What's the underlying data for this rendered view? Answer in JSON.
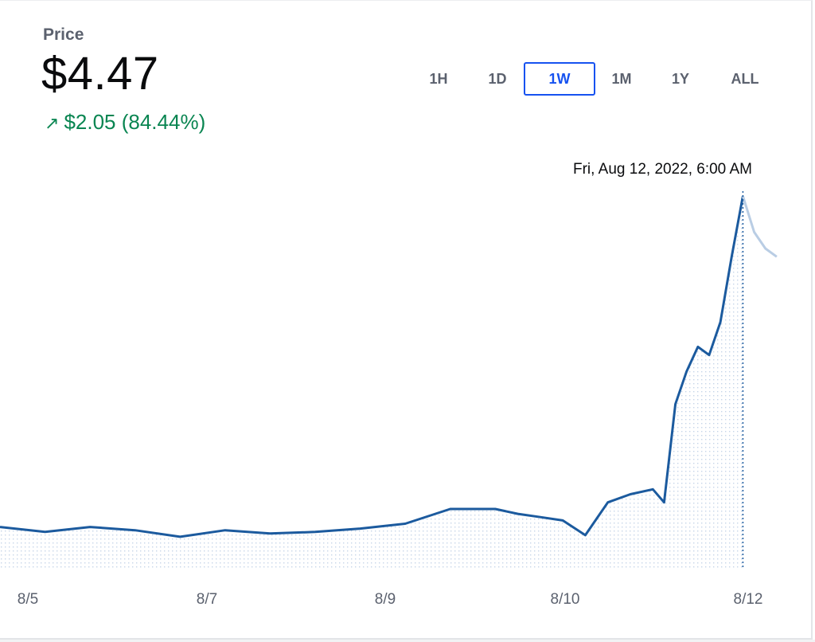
{
  "header": {
    "price_label": "Price",
    "price_value": "$4.47",
    "change_icon": "arrow-up-right-icon",
    "change_text": "$2.05 (84.44%)"
  },
  "range_tabs": {
    "items": [
      {
        "label": "1H"
      },
      {
        "label": "1D"
      },
      {
        "label": "1W"
      },
      {
        "label": "1M"
      },
      {
        "label": "1Y"
      },
      {
        "label": "ALL"
      }
    ],
    "selected": "1W"
  },
  "tooltip": {
    "date": "Fri, Aug 12, 2022, 6:00 AM"
  },
  "colors": {
    "line": "#1b5a9e",
    "line_faded": "#b9cde4",
    "fill_dots": "#c6d5e8",
    "positive": "#098551",
    "accent": "#1652f0"
  },
  "chart_data": {
    "type": "area",
    "title": "",
    "xlabel": "",
    "ylabel": "",
    "x_tick_labels": [
      "8/5",
      "8/7",
      "8/9",
      "8/10",
      "8/12"
    ],
    "x_range": [
      "2022-08-04",
      "2022-08-12"
    ],
    "y_range_usd": [
      2.2,
      4.5
    ],
    "hover_point": {
      "date": "2022-08-12 06:00",
      "value": 4.47
    },
    "series": [
      {
        "x": [
          "08-04 00:00",
          "08-04 12:00",
          "08-05 00:00",
          "08-05 12:00",
          "08-06 00:00",
          "08-06 12:00",
          "08-07 00:00",
          "08-07 12:00",
          "08-08 00:00",
          "08-08 12:00",
          "08-09 00:00",
          "08-09 12:00",
          "08-09 18:00",
          "08-10 00:00",
          "08-10 06:00",
          "08-10 12:00",
          "08-10 18:00",
          "08-11 00:00",
          "08-11 06:00",
          "08-11 09:00",
          "08-11 12:00",
          "08-11 15:00",
          "08-11 18:00",
          "08-11 21:00",
          "08-12 00:00",
          "08-12 03:00",
          "08-12 06:00",
          "08-12 09:00",
          "08-12 12:00",
          "08-12 15:00"
        ],
        "y": [
          2.45,
          2.42,
          2.45,
          2.43,
          2.39,
          2.43,
          2.41,
          2.42,
          2.44,
          2.47,
          2.56,
          2.56,
          2.53,
          2.51,
          2.49,
          2.4,
          2.6,
          2.65,
          2.68,
          2.6,
          3.2,
          3.4,
          3.55,
          3.5,
          3.7,
          4.1,
          4.47,
          4.25,
          4.15,
          4.1
        ]
      }
    ]
  }
}
